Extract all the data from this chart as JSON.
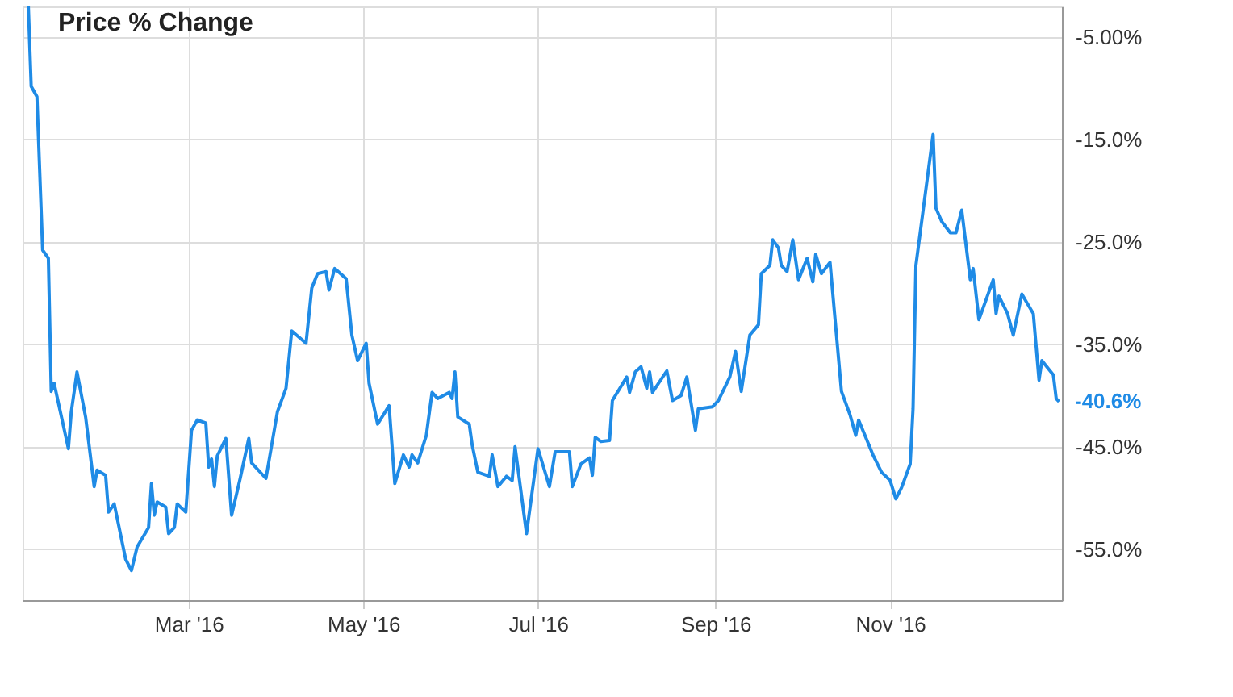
{
  "chart_data": {
    "type": "line",
    "title": "Price % Change",
    "x": [
      "2016-01-05",
      "2016-01-06",
      "2016-01-08",
      "2016-01-10",
      "2016-01-12",
      "2016-01-13",
      "2016-01-14",
      "2016-01-19",
      "2016-01-20",
      "2016-01-22",
      "2016-01-25",
      "2016-01-28",
      "2016-01-29",
      "2016-02-01",
      "2016-02-02",
      "2016-02-04",
      "2016-02-08",
      "2016-02-10",
      "2016-02-12",
      "2016-02-16",
      "2016-02-17",
      "2016-02-18",
      "2016-02-19",
      "2016-02-22",
      "2016-02-23",
      "2016-02-25",
      "2016-02-26",
      "2016-02-29",
      "2016-03-02",
      "2016-03-04",
      "2016-03-07",
      "2016-03-08",
      "2016-03-09",
      "2016-03-10",
      "2016-03-11",
      "2016-03-14",
      "2016-03-16",
      "2016-03-19",
      "2016-03-22",
      "2016-03-23",
      "2016-03-28",
      "2016-04-01",
      "2016-04-04",
      "2016-04-06",
      "2016-04-11",
      "2016-04-13",
      "2016-04-15",
      "2016-04-18",
      "2016-04-19",
      "2016-04-21",
      "2016-04-25",
      "2016-04-27",
      "2016-04-29",
      "2016-05-02",
      "2016-05-03",
      "2016-05-06",
      "2016-05-10",
      "2016-05-12",
      "2016-05-15",
      "2016-05-17",
      "2016-05-18",
      "2016-05-20",
      "2016-05-23",
      "2016-05-25",
      "2016-05-27",
      "2016-05-31",
      "2016-06-01",
      "2016-06-02",
      "2016-06-03",
      "2016-06-07",
      "2016-06-08",
      "2016-06-10",
      "2016-06-14",
      "2016-06-15",
      "2016-06-17",
      "2016-06-20",
      "2016-06-22",
      "2016-06-23",
      "2016-06-27",
      "2016-07-01",
      "2016-07-05",
      "2016-07-07",
      "2016-07-12",
      "2016-07-13",
      "2016-07-16",
      "2016-07-19",
      "2016-07-20",
      "2016-07-21",
      "2016-07-23",
      "2016-07-26",
      "2016-07-27",
      "2016-08-01",
      "2016-08-02",
      "2016-08-04",
      "2016-08-06",
      "2016-08-08",
      "2016-08-09",
      "2016-08-10",
      "2016-08-15",
      "2016-08-17",
      "2016-08-20",
      "2016-08-22",
      "2016-08-25",
      "2016-08-26",
      "2016-08-31",
      "2016-09-02",
      "2016-09-06",
      "2016-09-08",
      "2016-09-10",
      "2016-09-13",
      "2016-09-16",
      "2016-09-17",
      "2016-09-20",
      "2016-09-21",
      "2016-09-23",
      "2016-09-24",
      "2016-09-26",
      "2016-09-28",
      "2016-09-30",
      "2016-10-03",
      "2016-10-05",
      "2016-10-06",
      "2016-10-08",
      "2016-10-11",
      "2016-10-15",
      "2016-10-18",
      "2016-10-20",
      "2016-10-21",
      "2016-10-26",
      "2016-10-29",
      "2016-11-01",
      "2016-11-03",
      "2016-11-05",
      "2016-11-08",
      "2016-11-09",
      "2016-11-10",
      "2016-11-16",
      "2016-11-17",
      "2016-11-19",
      "2016-11-22",
      "2016-11-24",
      "2016-11-26",
      "2016-11-29",
      "2016-11-30",
      "2016-12-02",
      "2016-12-07",
      "2016-12-08",
      "2016-12-09",
      "2016-12-12",
      "2016-12-14",
      "2016-12-17",
      "2016-12-21",
      "2016-12-23",
      "2016-12-24",
      "2016-12-28",
      "2016-12-29",
      "2016-12-30"
    ],
    "series": [
      {
        "color": "#1f8be6",
        "values": [
          -2.0,
          -9.8,
          -10.8,
          -25.8,
          -26.6,
          -39.6,
          -38.8,
          -45.2,
          -41.6,
          -37.7,
          -42.1,
          -48.9,
          -47.3,
          -47.8,
          -51.4,
          -50.6,
          -56.0,
          -57.1,
          -54.8,
          -52.9,
          -48.6,
          -51.7,
          -50.4,
          -50.9,
          -53.5,
          -52.9,
          -50.6,
          -51.4,
          -43.4,
          -42.4,
          -42.7,
          -47.0,
          -46.2,
          -48.9,
          -45.9,
          -44.2,
          -51.7,
          -48.1,
          -44.2,
          -46.6,
          -48.1,
          -41.6,
          -39.3,
          -33.7,
          -34.9,
          -29.5,
          -28.1,
          -27.9,
          -29.7,
          -27.6,
          -28.6,
          -34.1,
          -36.6,
          -34.9,
          -38.8,
          -42.8,
          -41.0,
          -48.6,
          -45.8,
          -47.0,
          -45.8,
          -46.6,
          -43.9,
          -39.7,
          -40.3,
          -39.7,
          -40.3,
          -37.7,
          -42.1,
          -42.8,
          -44.8,
          -47.5,
          -47.9,
          -45.8,
          -48.9,
          -47.9,
          -48.3,
          -45.0,
          -53.5,
          -45.2,
          -48.9,
          -45.5,
          -45.5,
          -48.9,
          -46.7,
          -46.1,
          -47.8,
          -44.1,
          -44.5,
          -44.4,
          -40.5,
          -38.2,
          -39.7,
          -37.7,
          -37.2,
          -39.3,
          -37.7,
          -39.7,
          -37.6,
          -40.5,
          -40.0,
          -38.2,
          -43.4,
          -41.3,
          -41.1,
          -40.5,
          -38.2,
          -35.7,
          -39.6,
          -34.1,
          -33.1,
          -28.1,
          -27.3,
          -24.8,
          -25.6,
          -27.3,
          -27.9,
          -24.8,
          -28.7,
          -26.6,
          -28.9,
          -26.2,
          -28.1,
          -27.0,
          -39.6,
          -41.9,
          -43.9,
          -42.4,
          -45.8,
          -47.5,
          -48.3,
          -50.1,
          -49.0,
          -46.7,
          -41.3,
          -27.3,
          -14.5,
          -21.7,
          -23.0,
          -24.1,
          -24.1,
          -21.9,
          -28.7,
          -27.6,
          -32.6,
          -28.7,
          -32.0,
          -30.3,
          -32.0,
          -34.1,
          -30.1,
          -32.0,
          -38.5,
          -36.6,
          -38.0,
          -40.3,
          -40.6
        ]
      }
    ],
    "xlim": [
      "2016-01-03",
      "2016-12-31"
    ],
    "xticks": [
      {
        "value": "2016-03-01",
        "label": "Mar '16"
      },
      {
        "value": "2016-05-01",
        "label": "May '16"
      },
      {
        "value": "2016-07-01",
        "label": "Jul '16"
      },
      {
        "value": "2016-09-01",
        "label": "Sep '16"
      },
      {
        "value": "2016-11-01",
        "label": "Nov '16"
      }
    ],
    "ylim": [
      -60,
      -2
    ],
    "yticks": [
      {
        "value": -5,
        "label": "-5.00%"
      },
      {
        "value": -15,
        "label": "-15.0%"
      },
      {
        "value": -25,
        "label": "-25.0%"
      },
      {
        "value": -35,
        "label": "-35.0%"
      },
      {
        "value": -45,
        "label": "-45.0%"
      },
      {
        "value": -55,
        "label": "-55.0%"
      }
    ],
    "annotations": [
      {
        "text": "-40.6%",
        "x": "2016-12-30",
        "y": -40.6
      }
    ],
    "grid": true,
    "marker": "none",
    "line_style": "solid"
  }
}
